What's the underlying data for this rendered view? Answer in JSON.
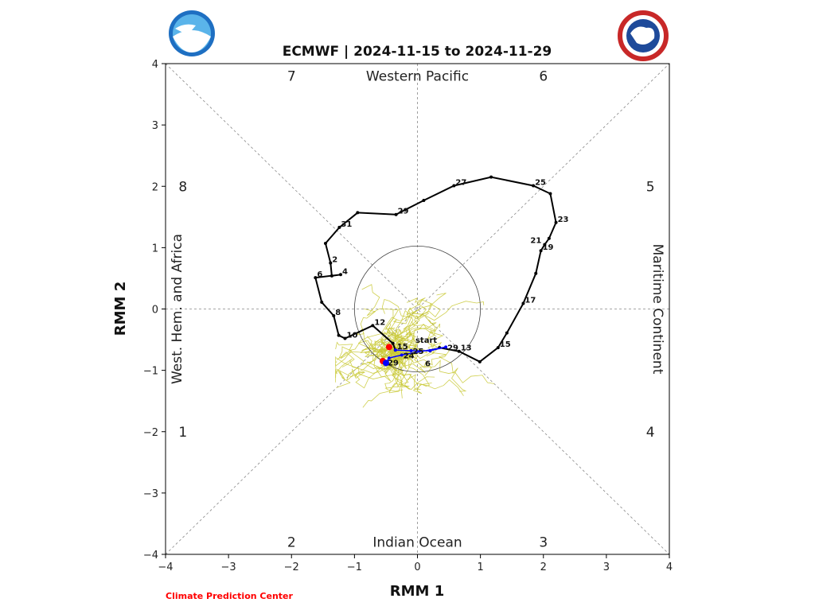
{
  "chart_data": {
    "type": "line",
    "title": "ECMWF | 2024-11-15 to 2024-11-29",
    "xlabel": "RMM 1",
    "ylabel": "RMM 2",
    "xlim": [
      -4,
      4
    ],
    "ylim": [
      -4,
      4
    ],
    "xticks": [
      "−4",
      "−3",
      "−2",
      "−1",
      "0",
      "1",
      "2",
      "3",
      "4"
    ],
    "yticks": [
      "−4",
      "−3",
      "−2",
      "−1",
      "0",
      "1",
      "2",
      "3",
      "4"
    ],
    "grid": false,
    "unit_circle_radius": 1,
    "phases": [
      {
        "label": "1",
        "x": -3.8,
        "y": -2
      },
      {
        "label": "2",
        "x": -2,
        "y": -3.8
      },
      {
        "label": "3",
        "x": 2,
        "y": -3.8
      },
      {
        "label": "4",
        "x": 3.8,
        "y": -2
      },
      {
        "label": "5",
        "x": 3.8,
        "y": 2
      },
      {
        "label": "6",
        "x": 2,
        "y": 3.8
      },
      {
        "label": "7",
        "x": -2,
        "y": 3.8
      },
      {
        "label": "8",
        "x": -3.8,
        "y": 2
      }
    ],
    "regions": {
      "top": "Western Pacific",
      "bottom": "Indian Ocean",
      "left": "West. Hem. and Africa",
      "right": "Maritime Continent"
    },
    "observed": {
      "color": "#000000",
      "points": [
        {
          "x": 0.35,
          "y": -0.63,
          "label": "start"
        },
        {
          "x": 0.66,
          "y": -0.69,
          "label": "13"
        },
        {
          "x": 0.99,
          "y": -0.86,
          "label": ""
        },
        {
          "x": 1.28,
          "y": -0.63,
          "label": "15"
        },
        {
          "x": 1.42,
          "y": -0.39,
          "label": ""
        },
        {
          "x": 1.68,
          "y": 0.09,
          "label": "17"
        },
        {
          "x": 1.88,
          "y": 0.58,
          "label": ""
        },
        {
          "x": 1.96,
          "y": 0.95,
          "label": "19"
        },
        {
          "x": 2.02,
          "y": 1.05,
          "label": "21"
        },
        {
          "x": 2.09,
          "y": 1.15,
          "label": ""
        },
        {
          "x": 2.2,
          "y": 1.41,
          "label": "23"
        },
        {
          "x": 2.11,
          "y": 1.88,
          "label": ""
        },
        {
          "x": 1.84,
          "y": 2.01,
          "label": "25"
        },
        {
          "x": 1.17,
          "y": 2.15,
          "label": ""
        },
        {
          "x": 0.58,
          "y": 2.01,
          "label": "27"
        },
        {
          "x": 0.1,
          "y": 1.77,
          "label": ""
        },
        {
          "x": -0.34,
          "y": 1.54,
          "label": "29"
        },
        {
          "x": -0.95,
          "y": 1.57,
          "label": ""
        },
        {
          "x": -1.24,
          "y": 1.33,
          "label": "31"
        },
        {
          "x": -1.46,
          "y": 1.07,
          "label": ""
        },
        {
          "x": -1.38,
          "y": 0.75,
          "label": "2"
        },
        {
          "x": -1.36,
          "y": 0.54,
          "label": ""
        },
        {
          "x": -1.22,
          "y": 0.56,
          "label": "4"
        },
        {
          "x": -1.62,
          "y": 0.51,
          "label": "6"
        },
        {
          "x": -1.52,
          "y": 0.11,
          "label": ""
        },
        {
          "x": -1.33,
          "y": -0.11,
          "label": "8"
        },
        {
          "x": -1.25,
          "y": -0.43,
          "label": ""
        },
        {
          "x": -1.15,
          "y": -0.48,
          "label": "10"
        },
        {
          "x": -0.71,
          "y": -0.27,
          "label": "12"
        },
        {
          "x": -0.39,
          "y": -0.56,
          "label": ""
        },
        {
          "x": -0.35,
          "y": -0.67,
          "label": "15"
        }
      ]
    },
    "ensemble_mean": {
      "color": "#0000ff",
      "points": [
        {
          "x": -0.35,
          "y": -0.67,
          "label": ""
        },
        {
          "x": -0.1,
          "y": -0.68,
          "label": "25"
        },
        {
          "x": 0.2,
          "y": -0.68,
          "label": ""
        },
        {
          "x": 0.45,
          "y": -0.62,
          "label": "29"
        },
        {
          "x": -0.25,
          "y": -0.75,
          "label": "24"
        },
        {
          "x": -0.45,
          "y": -0.8,
          "label": ""
        },
        {
          "x": -0.5,
          "y": -0.87,
          "label": "29"
        }
      ],
      "extra_labels": [
        {
          "x": 0.12,
          "y": -0.88,
          "label": "6"
        }
      ]
    },
    "markers": [
      {
        "x": -0.45,
        "y": -0.62,
        "color": "#ff0000"
      },
      {
        "x": -0.55,
        "y": -0.85,
        "color": "#ff0000"
      },
      {
        "x": -0.5,
        "y": -0.88,
        "color": "#0000ff"
      }
    ],
    "ensemble_members_color": "#c8c832"
  },
  "footer": {
    "credit": "Climate Prediction Center",
    "credit_color": "#ff0000"
  },
  "logos": {
    "left": "NOAA",
    "right": "NATIONAL WEATHER SERVICE"
  }
}
